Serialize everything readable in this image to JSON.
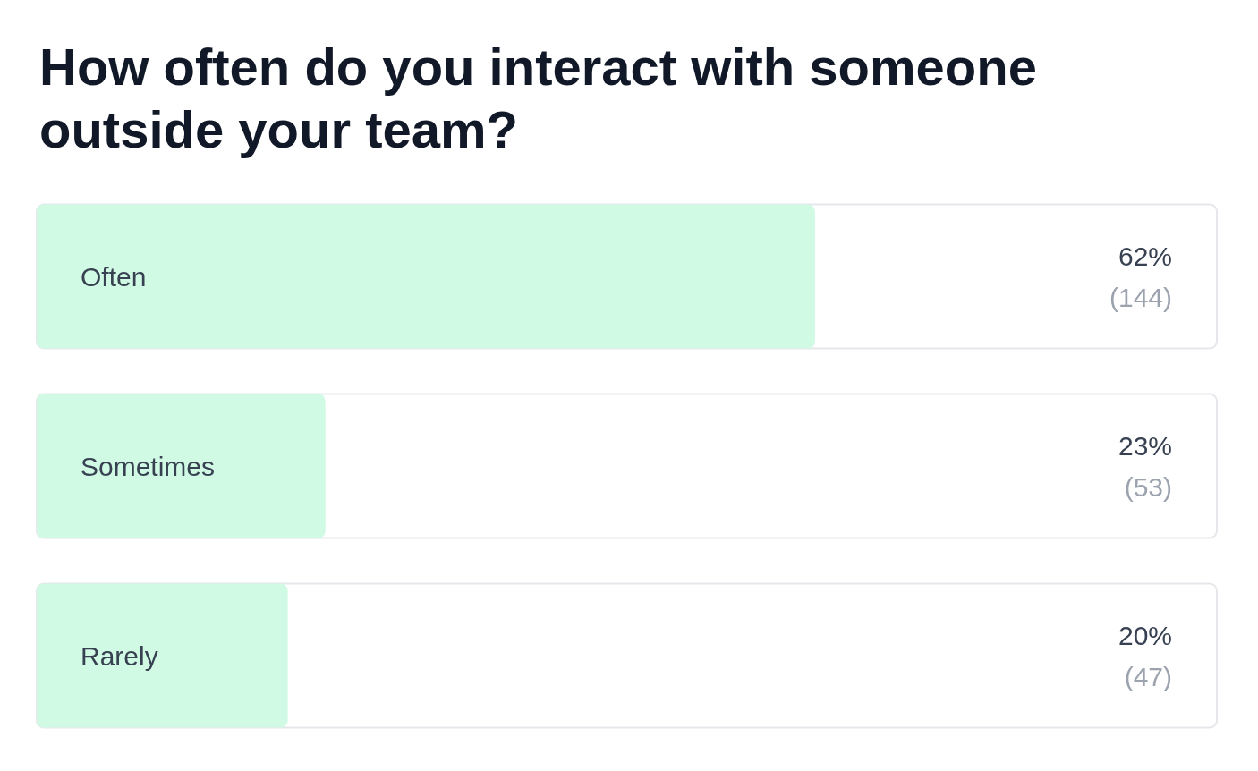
{
  "chart_data": {
    "type": "bar",
    "orientation": "horizontal",
    "title": "How often do you interact with someone outside your team?",
    "categories": [
      "Often",
      "Sometimes",
      "Rarely"
    ],
    "values": [
      62,
      23,
      20
    ],
    "color": "#d1fae5",
    "value_labels": [
      "62%\n(144)",
      "23%\n(53)",
      "20%\n(47)"
    ],
    "xlim": [
      0,
      94
    ]
  }
}
